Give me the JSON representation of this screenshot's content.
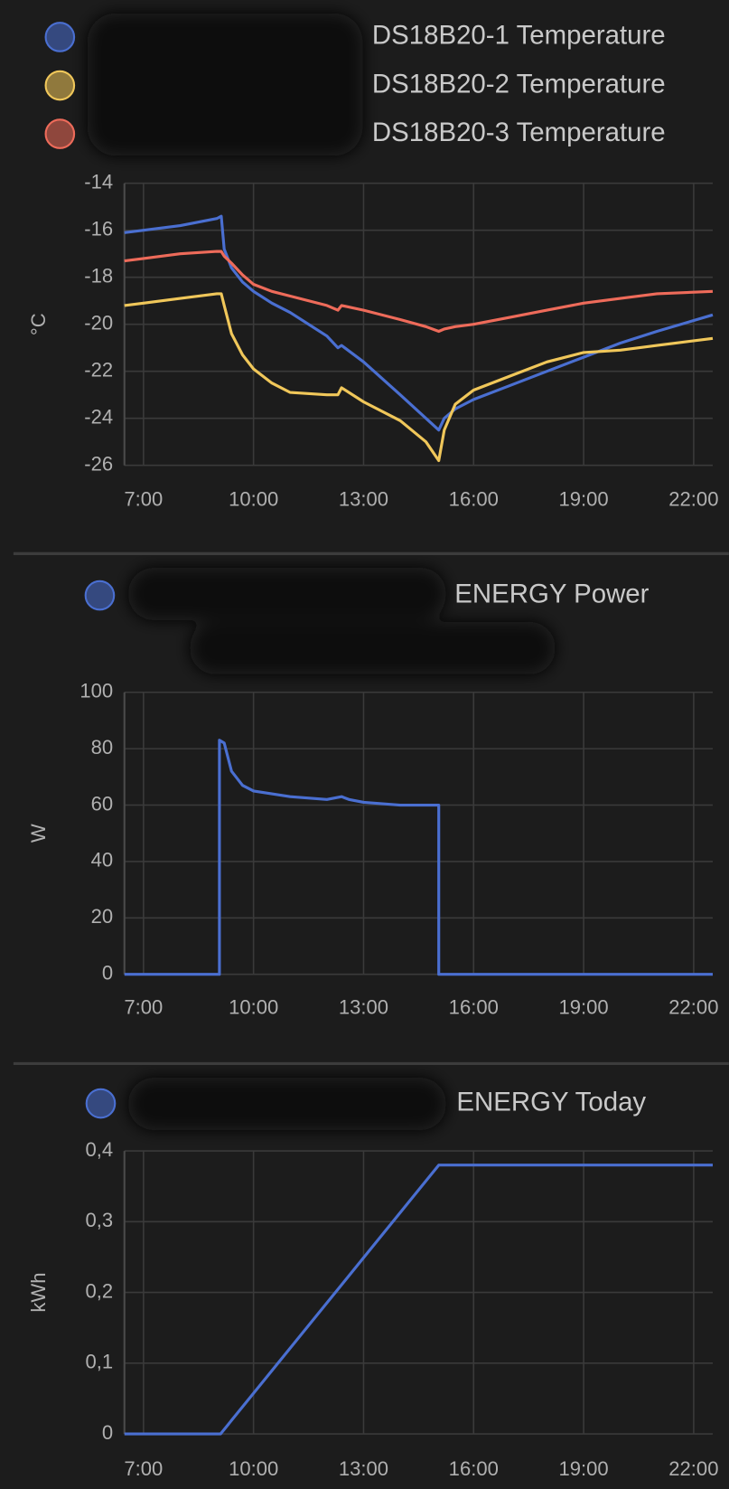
{
  "chart_data": [
    {
      "type": "line",
      "ylabel": "°C",
      "x": [
        6.48,
        7,
        8,
        9,
        9.12,
        9.2,
        9.4,
        9.7,
        10,
        10.5,
        11,
        12,
        12.3,
        12.4,
        13,
        14,
        14.7,
        15.05,
        15.2,
        15.5,
        16,
        17,
        18,
        19,
        20,
        21,
        22.52
      ],
      "series": [
        {
          "name": "DS18B20-1 Temperature",
          "color": "#4a6fd1",
          "values": [
            -16.1,
            -16.0,
            -15.8,
            -15.5,
            -15.4,
            -16.8,
            -17.6,
            -18.2,
            -18.6,
            -19.1,
            -19.5,
            -20.5,
            -21.0,
            -20.9,
            -21.6,
            -23.0,
            -24.0,
            -24.5,
            -24.0,
            -23.6,
            -23.2,
            -22.6,
            -22.0,
            -21.4,
            -20.8,
            -20.3,
            -19.6
          ]
        },
        {
          "name": "DS18B20-2 Temperature",
          "color": "#f0c75a",
          "values": [
            -19.2,
            -19.1,
            -18.9,
            -18.7,
            -18.7,
            -19.2,
            -20.4,
            -21.3,
            -21.9,
            -22.5,
            -22.9,
            -23.0,
            -23.0,
            -22.7,
            -23.3,
            -24.1,
            -25.0,
            -25.8,
            -24.5,
            -23.4,
            -22.8,
            -22.2,
            -21.6,
            -21.2,
            -21.1,
            -20.9,
            -20.6
          ]
        },
        {
          "name": "DS18B20-3 Temperature",
          "color": "#ee6b5a",
          "values": [
            -17.3,
            -17.2,
            -17.0,
            -16.9,
            -16.9,
            -17.1,
            -17.4,
            -17.9,
            -18.3,
            -18.6,
            -18.8,
            -19.2,
            -19.4,
            -19.2,
            -19.4,
            -19.8,
            -20.1,
            -20.3,
            -20.2,
            -20.1,
            -20.0,
            -19.7,
            -19.4,
            -19.1,
            -18.9,
            -18.7,
            -18.6
          ]
        }
      ],
      "xlim": [
        6.48,
        22.52
      ],
      "xticks": [
        {
          "value": 7,
          "label": "7:00"
        },
        {
          "value": 10,
          "label": "10:00"
        },
        {
          "value": 13,
          "label": "13:00"
        },
        {
          "value": 16,
          "label": "16:00"
        },
        {
          "value": 19,
          "label": "19:00"
        },
        {
          "value": 22,
          "label": "22:00"
        }
      ],
      "ylim": [
        -26,
        -14
      ],
      "yticks": [
        -14,
        -16,
        -18,
        -20,
        -22,
        -24,
        -26
      ],
      "grid": true
    },
    {
      "type": "line",
      "ylabel": "W",
      "x": [
        6.48,
        9.07,
        9.07,
        9.2,
        9.4,
        9.7,
        10,
        10.5,
        11,
        12,
        12.4,
        12.6,
        13,
        14,
        15.05,
        15.05,
        22.52
      ],
      "series": [
        {
          "name": "ENERGY Power",
          "color": "#4a6fd1",
          "values": [
            0,
            0,
            83,
            82,
            72,
            67,
            65,
            64,
            63,
            62,
            63,
            62,
            61,
            60,
            60,
            0,
            0
          ]
        }
      ],
      "xlim": [
        6.48,
        22.52
      ],
      "xticks": [
        {
          "value": 7,
          "label": "7:00"
        },
        {
          "value": 10,
          "label": "10:00"
        },
        {
          "value": 13,
          "label": "13:00"
        },
        {
          "value": 16,
          "label": "16:00"
        },
        {
          "value": 19,
          "label": "19:00"
        },
        {
          "value": 22,
          "label": "22:00"
        }
      ],
      "ylim": [
        0,
        100
      ],
      "yticks": [
        0,
        20,
        40,
        60,
        80,
        100
      ],
      "grid": true
    },
    {
      "type": "line",
      "ylabel": "kWh",
      "x": [
        6.48,
        9.1,
        15.05,
        22.52
      ],
      "series": [
        {
          "name": "ENERGY Today",
          "color": "#4a6fd1",
          "values": [
            0,
            0,
            0.38,
            0.38
          ]
        }
      ],
      "xlim": [
        6.48,
        22.52
      ],
      "xticks": [
        {
          "value": 7,
          "label": "7:00"
        },
        {
          "value": 10,
          "label": "10:00"
        },
        {
          "value": 13,
          "label": "13:00"
        },
        {
          "value": 16,
          "label": "16:00"
        },
        {
          "value": 19,
          "label": "19:00"
        },
        {
          "value": 22,
          "label": "22:00"
        }
      ],
      "ylim": [
        0,
        0.4
      ],
      "yticks": [
        0,
        {
          "value": 0.1,
          "label": "0,1"
        },
        {
          "value": 0.2,
          "label": "0,2"
        },
        {
          "value": 0.3,
          "label": "0,3"
        },
        {
          "value": 0.4,
          "label": "0,4"
        }
      ],
      "grid": true
    }
  ]
}
